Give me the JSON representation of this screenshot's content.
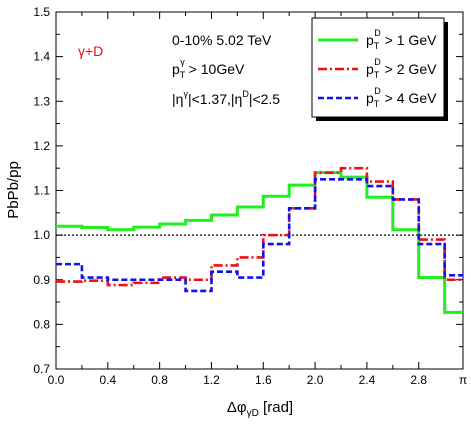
{
  "chart_data": {
    "type": "line",
    "step": true,
    "xlabel": "Δφ",
    "xlabel_sub": "γD",
    "xlabel_unit": " [rad]",
    "ylabel": "PbPb/pp",
    "xlim": [
      0,
      3.1416
    ],
    "ylim": [
      0.7,
      1.5
    ],
    "x_ticks": [
      0,
      0.4,
      0.8,
      1.2,
      1.6,
      2.0,
      2.4,
      2.8,
      3.1416
    ],
    "x_tick_labels": [
      "0.0",
      "0.4",
      "0.8",
      "1.2",
      "1.6",
      "2.0",
      "2.4",
      "2.8",
      "π"
    ],
    "y_ticks": [
      0.7,
      0.8,
      0.9,
      1.0,
      1.1,
      1.2,
      1.3,
      1.4,
      1.5
    ],
    "y_tick_labels": [
      "0.7",
      "0.8",
      "0.9",
      "1.0",
      "1.1",
      "1.2",
      "1.3",
      "1.4",
      "1.5"
    ],
    "reference_line": {
      "y": 1.0,
      "style": "dotted",
      "color": "#000000"
    },
    "bin_edges": [
      0,
      0.2,
      0.4,
      0.6,
      0.8,
      1.0,
      1.2,
      1.4,
      1.6,
      1.8,
      2.0,
      2.2,
      2.4,
      2.6,
      2.8,
      3.0,
      3.1416
    ],
    "series": [
      {
        "legend_label": "p",
        "legend_sup": "D",
        "legend_sub": "T",
        "legend_rest": " > 1 GeV",
        "color": "#22ee22",
        "dash": "solid",
        "values": [
          1.02,
          1.017,
          1.012,
          1.018,
          1.025,
          1.033,
          1.045,
          1.063,
          1.087,
          1.112,
          1.14,
          1.13,
          1.085,
          1.012,
          0.905,
          0.827
        ]
      },
      {
        "legend_label": "p",
        "legend_sup": "D",
        "legend_sub": "T",
        "legend_rest": " > 2 GeV",
        "color": "#ee1111",
        "dash": "dashdot",
        "values": [
          0.896,
          0.898,
          0.888,
          0.893,
          0.905,
          0.9,
          0.932,
          0.95,
          1.0,
          1.06,
          1.14,
          1.15,
          1.12,
          1.08,
          0.99,
          0.9
        ]
      },
      {
        "legend_label": "p",
        "legend_sup": "D",
        "legend_sub": "T",
        "legend_rest": " > 4 GeV",
        "color": "#1111ee",
        "dash": "dashed",
        "values": [
          0.935,
          0.905,
          0.9,
          0.9,
          0.9,
          0.875,
          0.918,
          0.905,
          0.98,
          1.06,
          1.125,
          1.125,
          1.11,
          1.08,
          0.98,
          0.91
        ]
      }
    ],
    "legend_position": "top-right"
  },
  "annotations": {
    "process": "γ+D",
    "process_color": "#ee1111",
    "line1": "0-10% 5.02 TeV",
    "line2_main": "p",
    "line2_sub": "T",
    "line2_sup": "γ",
    "line2_rest": " > 10GeV",
    "line3_a": "|η",
    "line3_a_sup": "γ",
    "line3_b": "|<1.37,|η",
    "line3_b_sup": "D",
    "line3_c": "|<2.5"
  }
}
